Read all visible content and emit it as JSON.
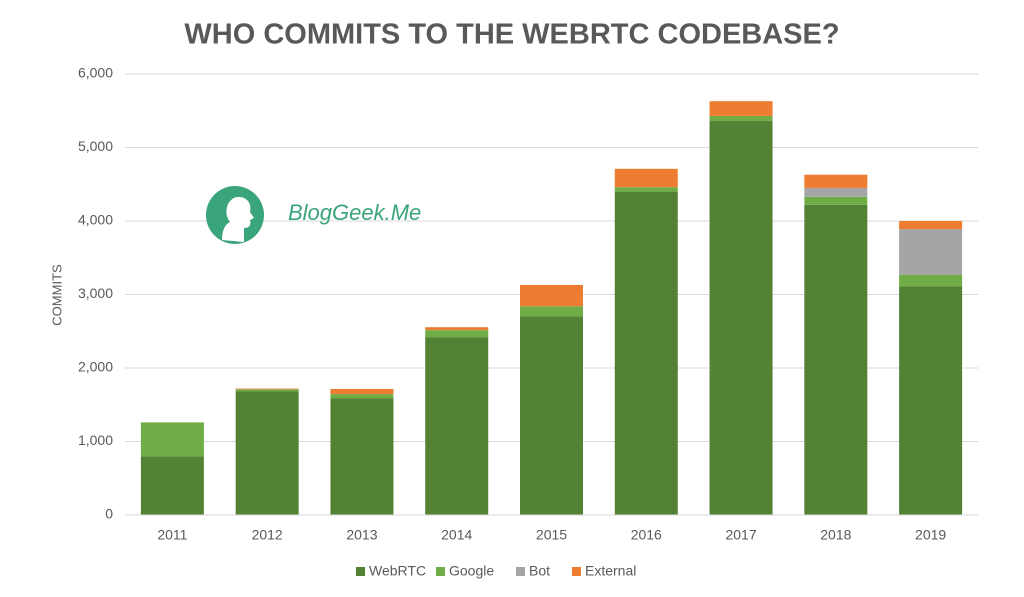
{
  "chart_data": {
    "type": "stacked_bar",
    "title": "WHO COMMITS TO THE WEBRTC CODEBASE?",
    "y_label": "COMMITS",
    "watermark": "BlogGeek.Me",
    "categories": [
      "2011",
      "2012",
      "2013",
      "2014",
      "2015",
      "2016",
      "2017",
      "2018",
      "2019"
    ],
    "series": [
      {
        "name": "WebRTC",
        "color": "#548235",
        "values": [
          800,
          1680,
          1590,
          2420,
          2700,
          4400,
          5360,
          4220,
          3110
        ]
      },
      {
        "name": "Google",
        "color": "#70ad47",
        "values": [
          460,
          30,
          55,
          95,
          140,
          60,
          70,
          110,
          160
        ]
      },
      {
        "name": "Bot",
        "color": "#a5a5a5",
        "values": [
          0,
          0,
          0,
          0,
          0,
          0,
          0,
          120,
          620
        ]
      },
      {
        "name": "External",
        "color": "#ed7d31",
        "values": [
          0,
          10,
          70,
          40,
          290,
          250,
          200,
          180,
          110
        ]
      }
    ],
    "ylim": [
      0,
      6000
    ],
    "yticks": [
      0,
      {
        "value": 1000,
        "label": "1,000"
      },
      {
        "value": 2000,
        "label": "2,000"
      },
      {
        "value": 3000,
        "label": "3,000"
      },
      {
        "value": 4000,
        "label": "4,000"
      },
      {
        "value": 5000,
        "label": "5,000"
      },
      {
        "value": 6000,
        "label": "6,000"
      }
    ],
    "grid": true,
    "legend": "bottom"
  }
}
